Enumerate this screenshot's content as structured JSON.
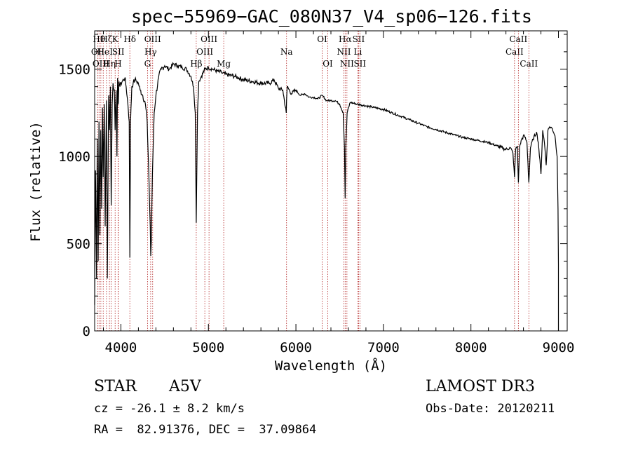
{
  "chart_data": {
    "type": "line",
    "title": "spec−55969−GAC_080N37_V4_sp06−126.fits",
    "xlabel": "Wavelength (Å)",
    "ylabel": "Flux (relative)",
    "xlim": [
      3700,
      9100
    ],
    "ylim": [
      0,
      1720
    ],
    "xticks": [
      4000,
      5000,
      6000,
      7000,
      8000,
      9000
    ],
    "yticks": [
      0,
      500,
      1000,
      1500
    ],
    "grid": false,
    "series": [
      {
        "color": "#000000",
        "x": [
          3700,
          3710,
          3722,
          3730,
          3740,
          3750,
          3760,
          3770,
          3780,
          3790,
          3798,
          3810,
          3820,
          3835,
          3845,
          3860,
          3870,
          3880,
          3889,
          3900,
          3910,
          3925,
          3934,
          3945,
          3955,
          3962,
          3970,
          3978,
          3990,
          4000,
          4015,
          4030,
          4045,
          4060,
          4080,
          4095,
          4102,
          4110,
          4125,
          4140,
          4160,
          4180,
          4200,
          4220,
          4250,
          4280,
          4300,
          4320,
          4335,
          4341,
          4348,
          4360,
          4380,
          4400,
          4430,
          4460,
          4500,
          4550,
          4600,
          4650,
          4700,
          4750,
          4800,
          4830,
          4850,
          4856,
          4861,
          4867,
          4875,
          4890,
          4920,
          4960,
          5000,
          5050,
          5100,
          5150,
          5200,
          5300,
          5400,
          5500,
          5600,
          5700,
          5750,
          5800,
          5850,
          5890,
          5893,
          5900,
          5950,
          6000,
          6050,
          6100,
          6150,
          6200,
          6250,
          6300,
          6350,
          6400,
          6450,
          6500,
          6540,
          6555,
          6563,
          6570,
          6585,
          6620,
          6700,
          6800,
          6900,
          7000,
          7100,
          7200,
          7300,
          7400,
          7500,
          7600,
          7700,
          7800,
          7900,
          8000,
          8100,
          8200,
          8300,
          8400,
          8450,
          8480,
          8498,
          8510,
          8530,
          8542,
          8555,
          8580,
          8610,
          8640,
          8662,
          8680,
          8710,
          8750,
          8770,
          8800,
          8820,
          8840,
          8860,
          8880,
          8900,
          8930,
          8960,
          8985,
          8995,
          9000
        ],
        "y": [
          150,
          920,
          300,
          1100,
          400,
          1200,
          550,
          1150,
          700,
          1280,
          880,
          1300,
          600,
          1320,
          300,
          1350,
          1150,
          1400,
          720,
          1300,
          1420,
          1380,
          1150,
          1380,
          1000,
          1450,
          1300,
          1430,
          1400,
          1420,
          1430,
          1440,
          1450,
          1400,
          1300,
          1200,
          420,
          1200,
          1400,
          1420,
          1440,
          1430,
          1420,
          1380,
          1350,
          1300,
          1200,
          880,
          600,
          430,
          520,
          900,
          1250,
          1350,
          1450,
          1500,
          1520,
          1500,
          1530,
          1520,
          1510,
          1500,
          1460,
          1400,
          1250,
          900,
          620,
          900,
          1250,
          1430,
          1460,
          1500,
          1510,
          1500,
          1490,
          1480,
          1470,
          1460,
          1440,
          1430,
          1420,
          1420,
          1440,
          1390,
          1380,
          1250,
          1320,
          1400,
          1360,
          1380,
          1350,
          1360,
          1340,
          1340,
          1330,
          1350,
          1320,
          1320,
          1320,
          1300,
          1250,
          1050,
          760,
          1050,
          1250,
          1310,
          1300,
          1290,
          1280,
          1270,
          1250,
          1230,
          1210,
          1190,
          1170,
          1155,
          1140,
          1125,
          1110,
          1100,
          1090,
          1080,
          1060,
          1040,
          1050,
          1020,
          880,
          1040,
          1060,
          850,
          1050,
          1100,
          1120,
          1080,
          850,
          1050,
          1100,
          1140,
          1080,
          900,
          1150,
          1080,
          950,
          1150,
          1170,
          1160,
          1120,
          1000,
          700,
          380
        ]
      }
    ],
    "line_markers": [
      {
        "wl": 3736,
        "row": 1,
        "label": "OII"
      },
      {
        "wl": 3750,
        "row": 0,
        "label": "Hθ"
      },
      {
        "wl": 3771,
        "row": 2,
        "label": "OIII"
      },
      {
        "wl": 3798,
        "row": 1,
        "label": "He"
      },
      {
        "wl": 3835,
        "row": 0,
        "label": "Hζ"
      },
      {
        "wl": 3869,
        "row": 2,
        "label": "Hη"
      },
      {
        "wl": 3889,
        "row": 1,
        "label": "I"
      },
      {
        "wl": 3934,
        "row": 0,
        "label": "K"
      },
      {
        "wl": 3968,
        "row": 2,
        "label": "H"
      },
      {
        "wl": 3970,
        "row": 1,
        "label": "SII"
      },
      {
        "wl": 4102,
        "row": 0,
        "label": "Hδ"
      },
      {
        "wl": 4304,
        "row": 2,
        "label": "G"
      },
      {
        "wl": 4340,
        "row": 1,
        "label": "Hγ"
      },
      {
        "wl": 4363,
        "row": 0,
        "label": "OIII"
      },
      {
        "wl": 4861,
        "row": 2,
        "label": "Hβ"
      },
      {
        "wl": 4959,
        "row": 1,
        "label": "OIII"
      },
      {
        "wl": 5007,
        "row": 0,
        "label": "OIII"
      },
      {
        "wl": 5175,
        "row": 2,
        "label": "Mg"
      },
      {
        "wl": 5893,
        "row": 1,
        "label": "Na"
      },
      {
        "wl": 6300,
        "row": 0,
        "label": "OI"
      },
      {
        "wl": 6364,
        "row": 2,
        "label": "OI"
      },
      {
        "wl": 6548,
        "row": 1,
        "label": "NII"
      },
      {
        "wl": 6563,
        "row": 0,
        "label": "Hα"
      },
      {
        "wl": 6583,
        "row": 2,
        "label": "NII"
      },
      {
        "wl": 6708,
        "row": 1,
        "label": "Li"
      },
      {
        "wl": 6716,
        "row": 0,
        "label": "SII"
      },
      {
        "wl": 6731,
        "row": 2,
        "label": "SII"
      },
      {
        "wl": 8498,
        "row": 1,
        "label": "CaII"
      },
      {
        "wl": 8542,
        "row": 0,
        "label": "CaII"
      },
      {
        "wl": 8662,
        "row": 2,
        "label": "CaII"
      }
    ]
  },
  "info": {
    "object_class": "STAR",
    "subclass": "A5V",
    "survey": "LAMOST DR3",
    "velocity": "cz = -26.1 ± 8.2 km/s",
    "obs_date": "Obs-Date: 20120211",
    "coords": "RA =  82.91376, DEC =  37.09864"
  }
}
